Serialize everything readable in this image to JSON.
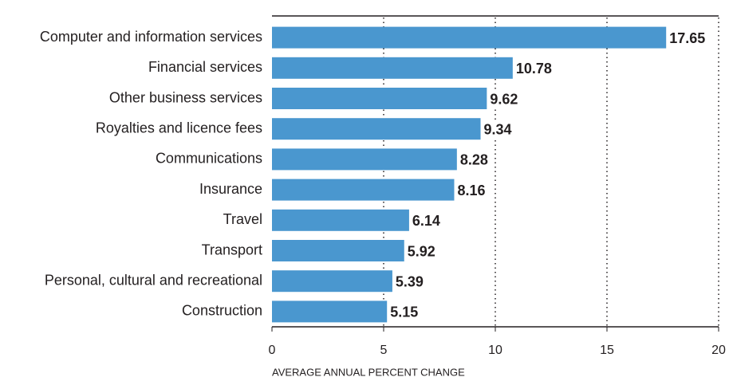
{
  "chart_data": {
    "type": "bar",
    "orientation": "horizontal",
    "categories": [
      "Computer and information services",
      "Financial services",
      "Other business services",
      "Royalties and licence fees",
      "Communications",
      "Insurance",
      "Travel",
      "Transport",
      "Personal, cultural and recreational",
      "Construction"
    ],
    "values": [
      17.65,
      10.78,
      9.62,
      9.34,
      8.28,
      8.16,
      6.14,
      5.92,
      5.39,
      5.15
    ],
    "color": "#4a97cf",
    "xlim": [
      0,
      20
    ],
    "xticks": [
      0,
      5,
      10,
      15,
      20
    ],
    "grid": true,
    "xlabel": "AVERAGE ANNUAL PERCENT CHANGE"
  }
}
